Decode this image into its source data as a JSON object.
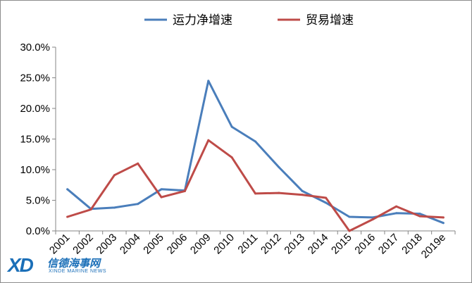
{
  "chart_data": {
    "type": "line",
    "categories": [
      "2001",
      "2002",
      "2003",
      "2004",
      "2005",
      "2006",
      "2009",
      "2010",
      "2011",
      "2012",
      "2013",
      "2014",
      "2015",
      "2016",
      "2017",
      "2018",
      "2019e"
    ],
    "series": [
      {
        "name": "运力净增速",
        "color": "#4a7ebb",
        "values": [
          6.8,
          3.6,
          3.8,
          4.4,
          6.8,
          6.6,
          24.5,
          17.0,
          14.6,
          10.4,
          6.5,
          4.6,
          2.3,
          2.2,
          2.9,
          2.8,
          1.3
        ]
      },
      {
        "name": "贸易增速",
        "color": "#be4b48",
        "values": [
          2.3,
          3.5,
          9.1,
          11.0,
          5.5,
          6.5,
          14.8,
          12.0,
          6.1,
          6.2,
          5.9,
          5.4,
          0.0,
          1.9,
          4.0,
          2.4,
          2.2
        ]
      }
    ],
    "y_ticks": [
      "0.0%",
      "5.0%",
      "10.0%",
      "15.0%",
      "20.0%",
      "25.0%",
      "30.0%"
    ],
    "ylim": [
      0,
      30
    ],
    "grid": false,
    "legend_position": "top-center"
  },
  "logo": {
    "mark": "XD",
    "name_cn": "信德海事网",
    "name_en": "XINDE MARINE NEWS"
  }
}
